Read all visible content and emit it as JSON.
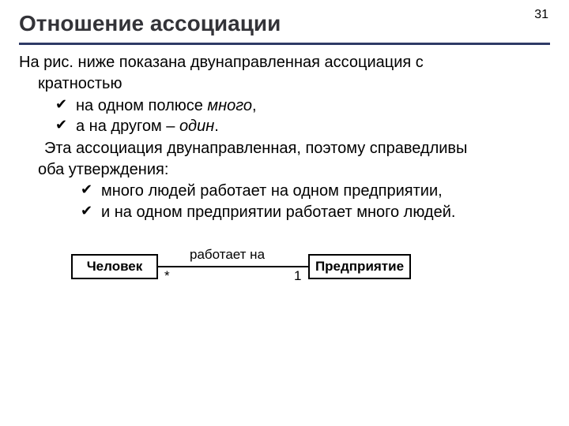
{
  "page_number": "31",
  "title": "Отношение ассоциации",
  "colors": {
    "rule": "#2e3a66",
    "text": "#000000",
    "title": "#333338",
    "bg": "#ffffff"
  },
  "fonts": {
    "title_size_pt": 21,
    "body_size_pt": 15
  },
  "intro": {
    "line1": "На рис. ниже показана двунаправленная ассоциация с",
    "line2": "кратностью"
  },
  "bullets_level1": [
    {
      "pre": "на одном полюсе ",
      "em": "много",
      "post": ","
    },
    {
      "pre": "а на другом – ",
      "em": "один",
      "post": "."
    }
  ],
  "mid": {
    "line1": "Эта ассоциация двунаправленная, поэтому справедливы",
    "line2": "оба утверждения:"
  },
  "bullets_level2": [
    "много людей работает на одном предприятии,",
    "и на одном предприятии работает много людей."
  ],
  "diagram": {
    "type": "uml-association",
    "left_class": "Человек",
    "right_class": "Предприятие",
    "label": "работает на",
    "mult_left": "*",
    "mult_right": "1",
    "box_border_color": "#000000",
    "box_bg": "#ffffff",
    "line_color": "#000000",
    "font_size": 17,
    "font_weight_box": "bold"
  }
}
